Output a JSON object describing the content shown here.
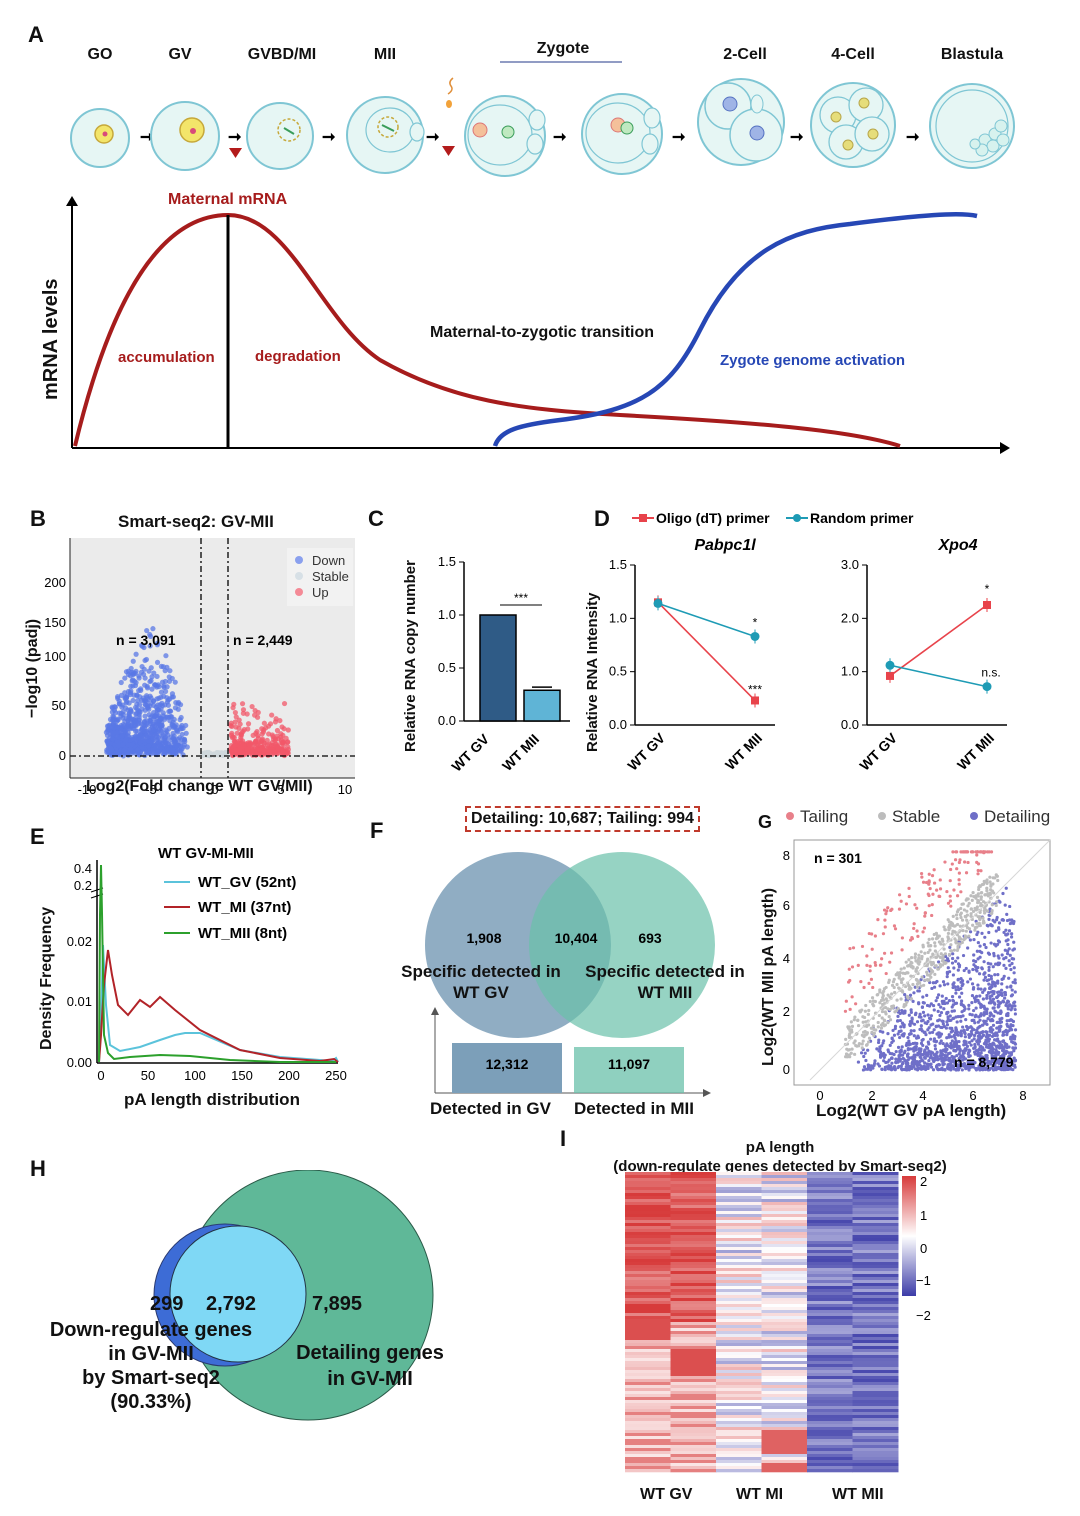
{
  "panelA": {
    "label": "A",
    "stages": [
      "GO",
      "GV",
      "GVBD/MI",
      "MII",
      "Zygote",
      "2-Cell",
      "4-Cell",
      "Blastula"
    ],
    "ylabel": "mRNA levels",
    "maternal": "Maternal mRNA",
    "accumulation": "accumulation",
    "degradation": "degradation",
    "mzt": "Maternal-to-zygotic transition",
    "zga": "Zygote genome activation",
    "colors": {
      "maternal": "#a61c1c",
      "zga": "#2647b5"
    }
  },
  "panelB": {
    "label": "B",
    "title": "Smart-seq2: GV-MII",
    "ylabel": "−log10 (padj)",
    "xlabel": "Log2(Fold change WT GV/MII)",
    "legend": [
      "Down",
      "Stable",
      "Up"
    ],
    "n_down": "n = 3,091",
    "n_up": "n = 2,449",
    "xticks": [
      "-10",
      "-5",
      "0",
      "5",
      "10"
    ],
    "yticks": [
      "0",
      "50",
      "100",
      "150",
      "200"
    ],
    "colors": {
      "down": "#5a78e6",
      "up": "#f2586a",
      "stable": "#cfd8dc"
    }
  },
  "panelC": {
    "label": "C",
    "ylabel": "Relative RNA copy number",
    "sig": "***",
    "yticks": [
      "0.0",
      "0.5",
      "1.0",
      "1.5"
    ],
    "chart_data": {
      "type": "bar",
      "categories": [
        "WT GV",
        "WT MII"
      ],
      "values": [
        1.0,
        0.29
      ],
      "ylim": [
        0,
        1.5
      ]
    }
  },
  "panelD": {
    "label": "D",
    "legend": [
      "Oligo (dT) primer",
      "Random primer"
    ],
    "ylabel": "Relative RNA Intensity",
    "colors": {
      "oligo": "#e8434b",
      "random": "#1e9bb5"
    },
    "left": {
      "title": "Pabpc1l",
      "yticks": [
        "0.0",
        "0.5",
        "1.0",
        "1.5"
      ],
      "categories": [
        "WT GV",
        "WT MII"
      ],
      "oligo": [
        1.15,
        0.23
      ],
      "random": [
        1.14,
        0.83
      ],
      "sig_oligo": "***",
      "sig_random": "*",
      "ylim": [
        0,
        1.5
      ]
    },
    "right": {
      "title": "Xpo4",
      "yticks": [
        "0.0",
        "1.0",
        "2.0",
        "3.0"
      ],
      "categories": [
        "WT GV",
        "WT MII"
      ],
      "oligo": [
        0.92,
        2.25
      ],
      "random": [
        1.12,
        0.72
      ],
      "sig_oligo": "*",
      "sig_random": "n.s.",
      "ylim": [
        0,
        3.0
      ]
    }
  },
  "panelE": {
    "label": "E",
    "title": "WT GV-MI-MII",
    "legend": [
      "WT_GV (52nt)",
      "WT_MI (37nt)",
      "WT_MII (8nt)"
    ],
    "ylabel": "Density Frequency",
    "xlabel": "pA length distribution",
    "xticks": [
      "0",
      "50",
      "100",
      "150",
      "200",
      "250"
    ],
    "yticks": [
      "0.00",
      "0.01",
      "0.02"
    ],
    "ytop": [
      "0.2",
      "0.4"
    ],
    "colors": {
      "gv": "#5bc3db",
      "mi": "#b22328",
      "mii": "#2ca02c"
    }
  },
  "panelF": {
    "label": "F",
    "box": "Detailing: 10,687; Tailing: 994",
    "left_n": "1,908",
    "mid_n": "10,404",
    "right_n": "693",
    "left_txt": "Specific detected in WT GV",
    "right_txt": "Specific detected in WT MII",
    "bar_gv": "12,312",
    "bar_mii": "11,097",
    "xlab_gv": "Detected in GV",
    "xlab_mii": "Detected in MII"
  },
  "panelG": {
    "label": "G",
    "legend": [
      "Tailing",
      "Stable",
      "Detailing"
    ],
    "n_top": "n = 301",
    "n_bottom": "n = 8,779",
    "ylabel": "Log2(WT MII pA length)",
    "xlabel": "Log2(WT GV pA length)",
    "xticks": [
      "0",
      "2",
      "4",
      "6",
      "8"
    ],
    "yticks": [
      "0",
      "2",
      "4",
      "6",
      "8"
    ],
    "colors": {
      "tailing": "#e8808a",
      "stable": "#bdbdbd",
      "detailing": "#6f6fc8"
    }
  },
  "panelH": {
    "label": "H",
    "left_n": "299",
    "mid_n": "2,792",
    "right_n": "7,895",
    "left_txt1": "Down-regulate genes",
    "left_txt2": "in GV-MII",
    "left_txt3": "by Smart-seq2",
    "left_txt4": "(90.33%)",
    "right_txt1": "Detailing genes",
    "right_txt2": "in GV-MII"
  },
  "panelI": {
    "label": "I",
    "title1": "pA length",
    "title2": "(down-regulate genes detected by Smart-seq2)",
    "scale": [
      "2",
      "1",
      "0",
      "−1",
      "−2"
    ],
    "columns": [
      "WT GV",
      "WT MI",
      "WT MII"
    ]
  }
}
